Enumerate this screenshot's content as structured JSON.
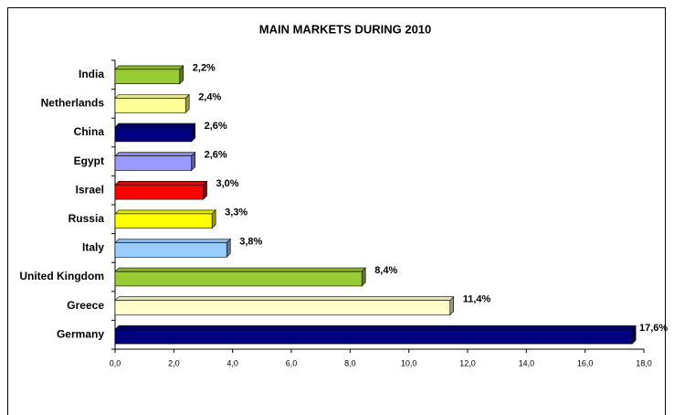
{
  "chart_data": {
    "type": "bar",
    "orientation": "horizontal",
    "title": "MAIN MARKETS DURING 2010",
    "categories": [
      "India",
      "Netherlands",
      "China",
      "Egypt",
      "Israel",
      "Russia",
      "Italy",
      "United Kingdom",
      "Greece",
      "Germany"
    ],
    "values": [
      2.2,
      2.4,
      2.6,
      2.6,
      3.0,
      3.3,
      3.8,
      8.4,
      11.4,
      17.6
    ],
    "value_labels": [
      "2,2%",
      "2,4%",
      "2,6%",
      "2,6%",
      "3,0%",
      "3,3%",
      "3,8%",
      "8,4%",
      "11,4%",
      "17,6%"
    ],
    "colors": [
      "#99cc33",
      "#ffff99",
      "#000080",
      "#9999ff",
      "#ff0000",
      "#ffff00",
      "#99ccff",
      "#99cc33",
      "#ffffcc",
      "#000080"
    ],
    "xlim": [
      0,
      18
    ],
    "xticks": [
      {
        "value": 0,
        "label": "0,0"
      },
      {
        "value": 2,
        "label": "2,0"
      },
      {
        "value": 4,
        "label": "4,0"
      },
      {
        "value": 6,
        "label": "6,0"
      },
      {
        "value": 8,
        "label": "8,0"
      },
      {
        "value": 10,
        "label": "10,0"
      },
      {
        "value": 12,
        "label": "12,0"
      },
      {
        "value": 14,
        "label": "14,0"
      },
      {
        "value": 16,
        "label": "16,0"
      },
      {
        "value": 18,
        "label": "18,0"
      }
    ],
    "grid": false
  }
}
